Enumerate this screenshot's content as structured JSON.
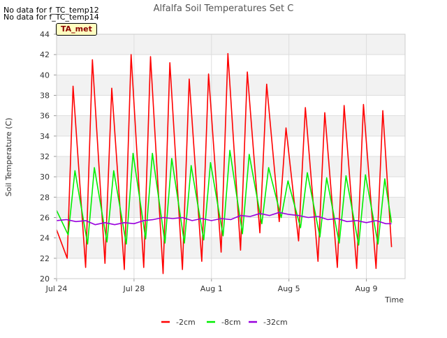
{
  "notices": [
    "No data for f_TC_temp12",
    "No data for f_TC_temp14"
  ],
  "badge": "TA_met",
  "chart_data": {
    "type": "line",
    "title": "Alfalfa Soil Temperatures Set C",
    "xlabel": "Time",
    "ylabel": "Soil Temperature (C)",
    "xlim": [
      0,
      18
    ],
    "ylim": [
      20,
      44
    ],
    "x_ticks": [
      {
        "label": "Jul 24",
        "value": 0
      },
      {
        "label": "Jul 28",
        "value": 4
      },
      {
        "label": "Aug 1",
        "value": 8
      },
      {
        "label": "Aug 5",
        "value": 12
      },
      {
        "label": "Aug 9",
        "value": 16
      }
    ],
    "y_ticks": [
      20,
      22,
      24,
      26,
      28,
      30,
      32,
      34,
      36,
      38,
      40,
      42,
      44
    ],
    "grid": true,
    "legend_position": "bottom",
    "series": [
      {
        "name": "-2cm",
        "color": "#ff0000",
        "x": [
          0.0,
          0.55,
          0.85,
          1.5,
          1.85,
          2.5,
          2.85,
          3.5,
          3.85,
          4.5,
          4.85,
          5.5,
          5.85,
          6.5,
          6.85,
          7.5,
          7.85,
          8.5,
          8.85,
          9.5,
          9.85,
          10.5,
          10.85,
          11.5,
          11.85,
          12.5,
          12.85,
          13.5,
          13.85,
          14.5,
          14.85,
          15.5,
          15.85,
          16.5,
          16.85,
          17.3
        ],
        "y": [
          24.8,
          22.0,
          38.9,
          21.1,
          41.5,
          21.5,
          38.7,
          20.9,
          42.0,
          21.1,
          41.8,
          20.5,
          41.2,
          20.9,
          39.6,
          21.7,
          40.1,
          22.6,
          42.1,
          22.8,
          40.3,
          24.5,
          39.1,
          25.6,
          34.8,
          23.7,
          36.8,
          21.7,
          36.3,
          21.1,
          37.0,
          21.0,
          37.1,
          21.0,
          36.5,
          23.1
        ]
      },
      {
        "name": "-8cm",
        "color": "#00ee00",
        "x": [
          0.0,
          0.6,
          0.95,
          1.6,
          1.95,
          2.6,
          2.95,
          3.6,
          3.95,
          4.6,
          4.95,
          5.6,
          5.95,
          6.6,
          6.95,
          7.6,
          7.95,
          8.6,
          8.95,
          9.6,
          9.95,
          10.6,
          10.95,
          11.6,
          11.95,
          12.6,
          12.95,
          13.6,
          13.95,
          14.6,
          14.95,
          15.6,
          15.95,
          16.6,
          16.95,
          17.3
        ],
        "y": [
          26.7,
          24.3,
          30.6,
          23.4,
          30.9,
          23.6,
          30.6,
          23.4,
          32.3,
          23.9,
          32.3,
          23.5,
          31.8,
          23.5,
          31.1,
          23.8,
          31.4,
          24.2,
          32.6,
          24.4,
          32.2,
          25.4,
          30.9,
          26.0,
          29.6,
          25.0,
          30.4,
          24.1,
          29.9,
          23.5,
          30.1,
          23.3,
          30.2,
          23.4,
          29.8,
          25.5
        ]
      },
      {
        "name": "-32cm",
        "color": "#9900dd",
        "x": [
          0.0,
          0.5,
          1.0,
          1.5,
          2.0,
          2.5,
          3.0,
          3.5,
          4.0,
          4.5,
          5.0,
          5.5,
          6.0,
          6.5,
          7.0,
          7.5,
          8.0,
          8.5,
          9.0,
          9.5,
          10.0,
          10.5,
          11.0,
          11.5,
          12.0,
          12.5,
          13.0,
          13.5,
          14.0,
          14.5,
          15.0,
          15.5,
          16.0,
          16.5,
          17.0,
          17.3
        ],
        "y": [
          25.7,
          25.8,
          25.6,
          25.7,
          25.3,
          25.5,
          25.3,
          25.5,
          25.4,
          25.7,
          25.8,
          26.0,
          25.9,
          26.0,
          25.7,
          25.9,
          25.7,
          25.9,
          25.8,
          26.2,
          26.1,
          26.4,
          26.2,
          26.5,
          26.3,
          26.2,
          26.0,
          26.1,
          25.8,
          25.9,
          25.6,
          25.7,
          25.5,
          25.7,
          25.4,
          25.4
        ]
      }
    ]
  }
}
